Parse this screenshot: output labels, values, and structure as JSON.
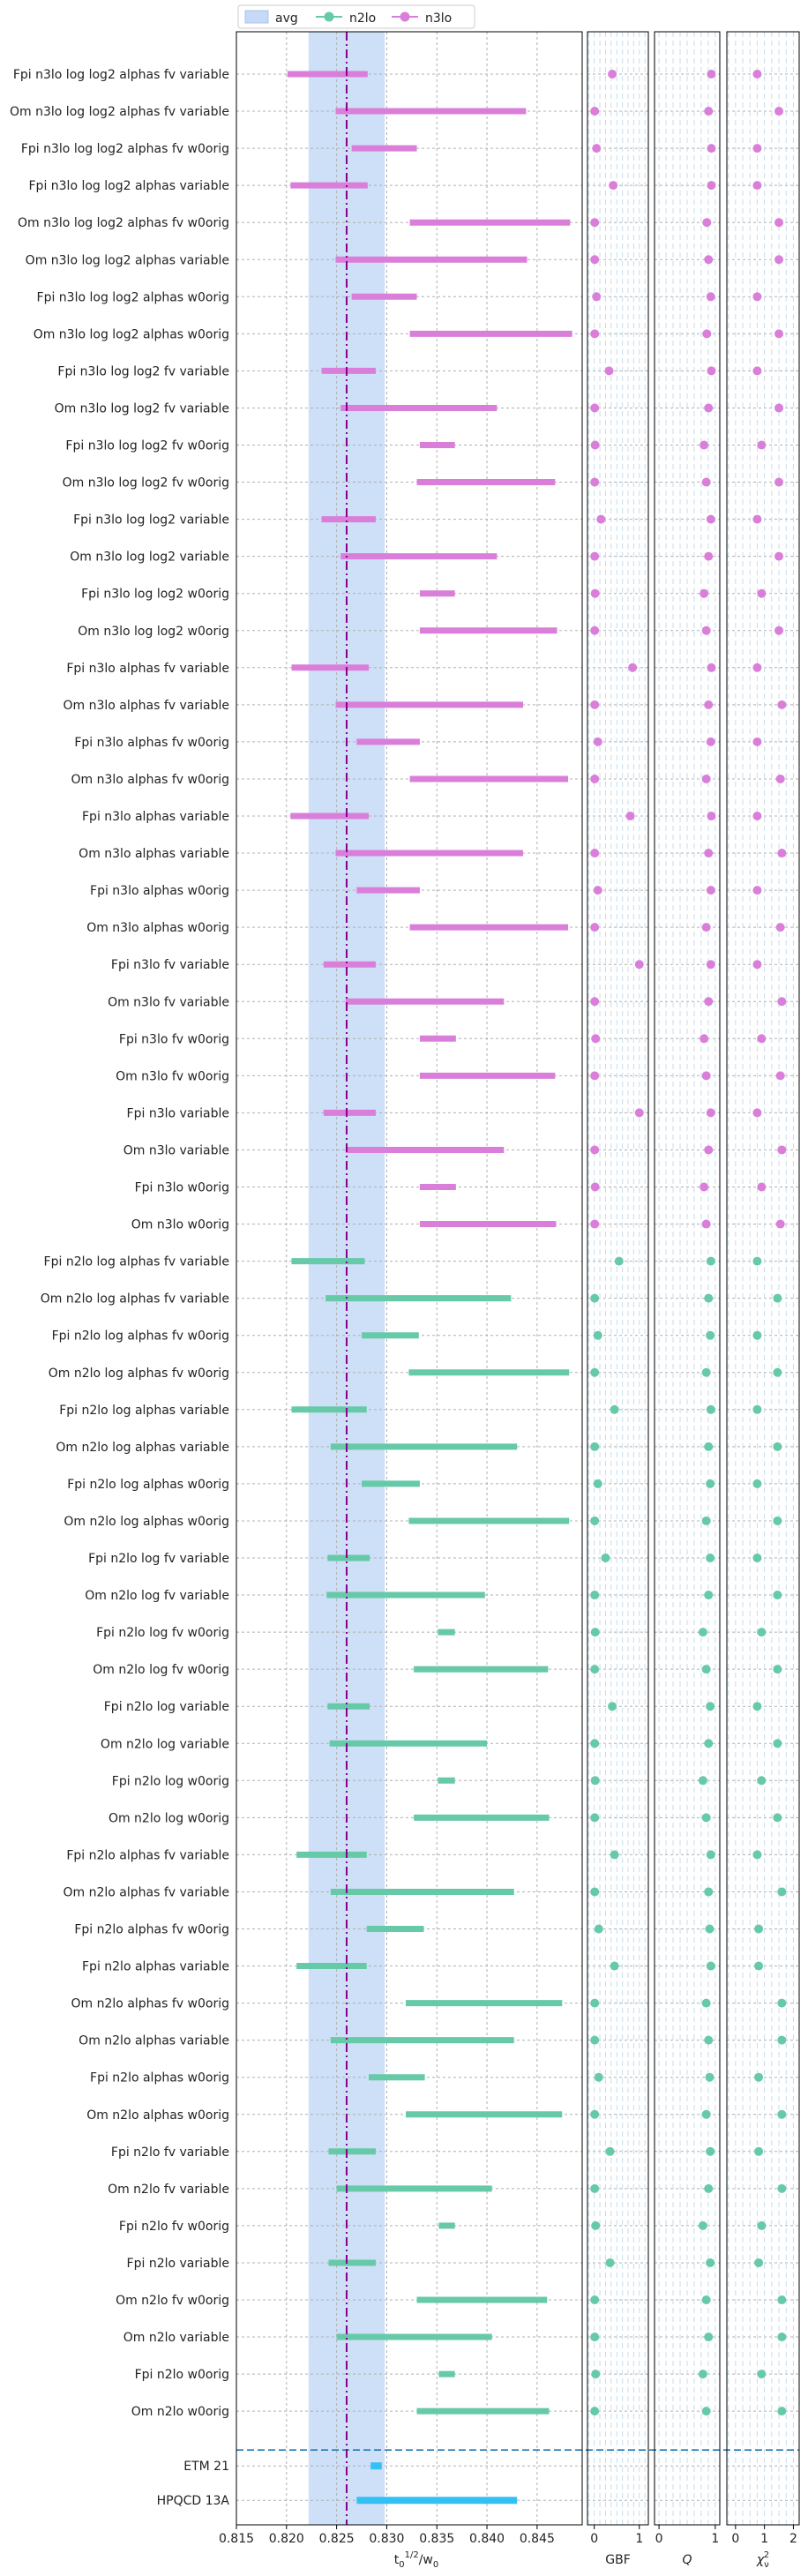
{
  "chart_data": {
    "type": "forest",
    "legend": {
      "placement": "top",
      "entries": [
        {
          "key": "avg",
          "label": "avg",
          "color": "#c6d9f7"
        },
        {
          "key": "n2lo",
          "label": "n2lo",
          "color": "#66c9a8"
        },
        {
          "key": "n3lo",
          "label": "n3lo",
          "color": "#da7fd9"
        }
      ]
    },
    "colors": {
      "n2lo": "#66c9a8",
      "n3lo": "#da7fd9",
      "ref": "#33c1f4",
      "avg_band": "#c6d9f7",
      "avg_line": "#8b008b",
      "separator": "#1f77b4"
    },
    "main_panel": {
      "xlabel": "t_0^{1/2}/w_0",
      "xlim": [
        0.815,
        0.8495
      ],
      "xticks": [
        0.815,
        0.82,
        0.825,
        0.83,
        0.835,
        0.84,
        0.845
      ],
      "xtick_labels": [
        "0.815",
        "0.820",
        "0.825",
        "0.830",
        "0.835",
        "0.840",
        "0.845"
      ],
      "avg_value": 0.826,
      "avg_band": [
        0.8222,
        0.8298
      ]
    },
    "side_panels": [
      {
        "key": "gbf",
        "xlabel": "GBF",
        "xlim": [
          -0.15,
          1.2
        ],
        "xticks": [
          0,
          1
        ],
        "xtick_labels": [
          "0",
          "1"
        ]
      },
      {
        "key": "q",
        "xlabel": "Q",
        "xlim": [
          -0.08,
          1.08
        ],
        "xticks": [
          0,
          1
        ],
        "xtick_labels": [
          "0",
          "1"
        ]
      },
      {
        "key": "chi2",
        "xlabel": "χ²_ν",
        "xlim": [
          -0.3,
          2.2
        ],
        "xticks": [
          0,
          1,
          2
        ],
        "xtick_labels": [
          "0",
          "1",
          "2"
        ]
      }
    ],
    "fits": [
      {
        "label": "Fpi n3lo log log2 alphas fv variable",
        "order": "n3lo",
        "lo": 0.8201,
        "hi": 0.8281,
        "gbf": 0.4,
        "q": 0.93,
        "chi2": 0.75
      },
      {
        "label": "Om n3lo log log2 alphas fv variable",
        "order": "n3lo",
        "lo": 0.8249,
        "hi": 0.8439,
        "gbf": 0.01,
        "q": 0.88,
        "chi2": 1.5
      },
      {
        "label": "Fpi n3lo log log2 alphas fv w0orig",
        "order": "n3lo",
        "lo": 0.8265,
        "hi": 0.833,
        "gbf": 0.05,
        "q": 0.93,
        "chi2": 0.75
      },
      {
        "label": "Fpi n3lo log log2 alphas variable",
        "order": "n3lo",
        "lo": 0.8204,
        "hi": 0.8281,
        "gbf": 0.42,
        "q": 0.93,
        "chi2": 0.75
      },
      {
        "label": "Om n3lo log log2 alphas fv w0orig",
        "order": "n3lo",
        "lo": 0.8323,
        "hi": 0.8483,
        "gbf": 0.01,
        "q": 0.85,
        "chi2": 1.5
      },
      {
        "label": "Om n3lo log log2 alphas variable",
        "order": "n3lo",
        "lo": 0.8249,
        "hi": 0.844,
        "gbf": 0.01,
        "q": 0.88,
        "chi2": 1.5
      },
      {
        "label": "Fpi n3lo log log2 alphas w0orig",
        "order": "n3lo",
        "lo": 0.8265,
        "hi": 0.833,
        "gbf": 0.05,
        "q": 0.92,
        "chi2": 0.75
      },
      {
        "label": "Om n3lo log log2 alphas w0orig",
        "order": "n3lo",
        "lo": 0.8323,
        "hi": 0.8485,
        "gbf": 0.01,
        "q": 0.85,
        "chi2": 1.5
      },
      {
        "label": "Fpi n3lo log log2 fv variable",
        "order": "n3lo",
        "lo": 0.8235,
        "hi": 0.8289,
        "gbf": 0.33,
        "q": 0.93,
        "chi2": 0.75
      },
      {
        "label": "Om n3lo log log2 fv variable",
        "order": "n3lo",
        "lo": 0.8254,
        "hi": 0.841,
        "gbf": 0.01,
        "q": 0.88,
        "chi2": 1.5
      },
      {
        "label": "Fpi n3lo log log2 fv w0orig",
        "order": "n3lo",
        "lo": 0.8333,
        "hi": 0.8368,
        "gbf": 0.02,
        "q": 0.8,
        "chi2": 0.9
      },
      {
        "label": "Om n3lo log log2 fv w0orig",
        "order": "n3lo",
        "lo": 0.833,
        "hi": 0.8468,
        "gbf": 0.01,
        "q": 0.84,
        "chi2": 1.5
      },
      {
        "label": "Fpi n3lo log log2 variable",
        "order": "n3lo",
        "lo": 0.8235,
        "hi": 0.8289,
        "gbf": 0.15,
        "q": 0.92,
        "chi2": 0.75
      },
      {
        "label": "Om n3lo log log2 variable",
        "order": "n3lo",
        "lo": 0.8254,
        "hi": 0.841,
        "gbf": 0.01,
        "q": 0.88,
        "chi2": 1.5
      },
      {
        "label": "Fpi n3lo log log2 w0orig",
        "order": "n3lo",
        "lo": 0.8333,
        "hi": 0.8368,
        "gbf": 0.02,
        "q": 0.8,
        "chi2": 0.9
      },
      {
        "label": "Om n3lo log log2 w0orig",
        "order": "n3lo",
        "lo": 0.8333,
        "hi": 0.847,
        "gbf": 0.01,
        "q": 0.84,
        "chi2": 1.5
      },
      {
        "label": "Fpi n3lo alphas fv variable",
        "order": "n3lo",
        "lo": 0.8205,
        "hi": 0.8282,
        "gbf": 0.85,
        "q": 0.93,
        "chi2": 0.75
      },
      {
        "label": "Om n3lo alphas fv variable",
        "order": "n3lo",
        "lo": 0.8249,
        "hi": 0.8436,
        "gbf": 0.01,
        "q": 0.88,
        "chi2": 1.6
      },
      {
        "label": "Fpi n3lo alphas fv w0orig",
        "order": "n3lo",
        "lo": 0.827,
        "hi": 0.8333,
        "gbf": 0.08,
        "q": 0.92,
        "chi2": 0.75
      },
      {
        "label": "Om n3lo alphas fv w0orig",
        "order": "n3lo",
        "lo": 0.8323,
        "hi": 0.8481,
        "gbf": 0.01,
        "q": 0.84,
        "chi2": 1.55
      },
      {
        "label": "Fpi n3lo alphas variable",
        "order": "n3lo",
        "lo": 0.8204,
        "hi": 0.8282,
        "gbf": 0.8,
        "q": 0.93,
        "chi2": 0.75
      },
      {
        "label": "Om n3lo alphas variable",
        "order": "n3lo",
        "lo": 0.8249,
        "hi": 0.8436,
        "gbf": 0.01,
        "q": 0.88,
        "chi2": 1.6
      },
      {
        "label": "Fpi n3lo alphas w0orig",
        "order": "n3lo",
        "lo": 0.827,
        "hi": 0.8333,
        "gbf": 0.08,
        "q": 0.92,
        "chi2": 0.75
      },
      {
        "label": "Om n3lo alphas w0orig",
        "order": "n3lo",
        "lo": 0.8323,
        "hi": 0.8481,
        "gbf": 0.01,
        "q": 0.84,
        "chi2": 1.55
      },
      {
        "label": "Fpi n3lo fv variable",
        "order": "n3lo",
        "lo": 0.8237,
        "hi": 0.8289,
        "gbf": 1.0,
        "q": 0.92,
        "chi2": 0.75
      },
      {
        "label": "Om n3lo fv variable",
        "order": "n3lo",
        "lo": 0.8259,
        "hi": 0.8417,
        "gbf": 0.01,
        "q": 0.88,
        "chi2": 1.6
      },
      {
        "label": "Fpi n3lo fv w0orig",
        "order": "n3lo",
        "lo": 0.8333,
        "hi": 0.8369,
        "gbf": 0.03,
        "q": 0.8,
        "chi2": 0.9
      },
      {
        "label": "Om n3lo fv w0orig",
        "order": "n3lo",
        "lo": 0.8333,
        "hi": 0.8468,
        "gbf": 0.01,
        "q": 0.84,
        "chi2": 1.55
      },
      {
        "label": "Fpi n3lo variable",
        "order": "n3lo",
        "lo": 0.8237,
        "hi": 0.8289,
        "gbf": 1.0,
        "q": 0.92,
        "chi2": 0.75
      },
      {
        "label": "Om n3lo variable",
        "order": "n3lo",
        "lo": 0.8259,
        "hi": 0.8417,
        "gbf": 0.01,
        "q": 0.88,
        "chi2": 1.6
      },
      {
        "label": "Fpi n3lo w0orig",
        "order": "n3lo",
        "lo": 0.8333,
        "hi": 0.8369,
        "gbf": 0.02,
        "q": 0.8,
        "chi2": 0.9
      },
      {
        "label": "Om n3lo w0orig",
        "order": "n3lo",
        "lo": 0.8333,
        "hi": 0.8469,
        "gbf": 0.01,
        "q": 0.84,
        "chi2": 1.55
      },
      {
        "label": "Fpi n2lo log alphas fv variable",
        "order": "n2lo",
        "lo": 0.8205,
        "hi": 0.8278,
        "gbf": 0.55,
        "q": 0.92,
        "chi2": 0.75
      },
      {
        "label": "Om n2lo log alphas fv variable",
        "order": "n2lo",
        "lo": 0.8239,
        "hi": 0.8424,
        "gbf": 0.01,
        "q": 0.88,
        "chi2": 1.45
      },
      {
        "label": "Fpi n2lo log alphas fv w0orig",
        "order": "n2lo",
        "lo": 0.8275,
        "hi": 0.8332,
        "gbf": 0.08,
        "q": 0.91,
        "chi2": 0.75
      },
      {
        "label": "Om n2lo log alphas fv w0orig",
        "order": "n2lo",
        "lo": 0.8322,
        "hi": 0.8482,
        "gbf": 0.01,
        "q": 0.84,
        "chi2": 1.45
      },
      {
        "label": "Fpi n2lo log alphas variable",
        "order": "n2lo",
        "lo": 0.8205,
        "hi": 0.828,
        "gbf": 0.45,
        "q": 0.92,
        "chi2": 0.75
      },
      {
        "label": "Om n2lo log alphas variable",
        "order": "n2lo",
        "lo": 0.8244,
        "hi": 0.843,
        "gbf": 0.01,
        "q": 0.88,
        "chi2": 1.45
      },
      {
        "label": "Fpi n2lo log alphas w0orig",
        "order": "n2lo",
        "lo": 0.8275,
        "hi": 0.8333,
        "gbf": 0.08,
        "q": 0.91,
        "chi2": 0.75
      },
      {
        "label": "Om n2lo log alphas w0orig",
        "order": "n2lo",
        "lo": 0.8322,
        "hi": 0.8482,
        "gbf": 0.01,
        "q": 0.84,
        "chi2": 1.45
      },
      {
        "label": "Fpi n2lo log fv variable",
        "order": "n2lo",
        "lo": 0.8241,
        "hi": 0.8283,
        "gbf": 0.25,
        "q": 0.91,
        "chi2": 0.75
      },
      {
        "label": "Om n2lo log fv variable",
        "order": "n2lo",
        "lo": 0.824,
        "hi": 0.8398,
        "gbf": 0.01,
        "q": 0.88,
        "chi2": 1.45
      },
      {
        "label": "Fpi n2lo log fv w0orig",
        "order": "n2lo",
        "lo": 0.8351,
        "hi": 0.8368,
        "gbf": 0.02,
        "q": 0.78,
        "chi2": 0.9
      },
      {
        "label": "Om n2lo log fv w0orig",
        "order": "n2lo",
        "lo": 0.8327,
        "hi": 0.8461,
        "gbf": 0.01,
        "q": 0.84,
        "chi2": 1.45
      },
      {
        "label": "Fpi n2lo log variable",
        "order": "n2lo",
        "lo": 0.8241,
        "hi": 0.8283,
        "gbf": 0.4,
        "q": 0.91,
        "chi2": 0.75
      },
      {
        "label": "Om n2lo log variable",
        "order": "n2lo",
        "lo": 0.8243,
        "hi": 0.84,
        "gbf": 0.01,
        "q": 0.88,
        "chi2": 1.45
      },
      {
        "label": "Fpi n2lo log w0orig",
        "order": "n2lo",
        "lo": 0.8351,
        "hi": 0.8368,
        "gbf": 0.02,
        "q": 0.78,
        "chi2": 0.9
      },
      {
        "label": "Om n2lo log w0orig",
        "order": "n2lo",
        "lo": 0.8327,
        "hi": 0.8462,
        "gbf": 0.01,
        "q": 0.84,
        "chi2": 1.45
      },
      {
        "label": "Fpi n2lo alphas fv variable",
        "order": "n2lo",
        "lo": 0.821,
        "hi": 0.828,
        "gbf": 0.45,
        "q": 0.92,
        "chi2": 0.75
      },
      {
        "label": "Om n2lo alphas fv variable",
        "order": "n2lo",
        "lo": 0.8244,
        "hi": 0.8427,
        "gbf": 0.01,
        "q": 0.88,
        "chi2": 1.6
      },
      {
        "label": "Fpi n2lo alphas fv w0orig",
        "order": "n2lo",
        "lo": 0.828,
        "hi": 0.8337,
        "gbf": 0.1,
        "q": 0.9,
        "chi2": 0.8
      },
      {
        "label": "Fpi n2lo alphas variable",
        "order": "n2lo",
        "lo": 0.821,
        "hi": 0.828,
        "gbf": 0.45,
        "q": 0.92,
        "chi2": 0.8
      },
      {
        "label": "Om n2lo alphas fv w0orig",
        "order": "n2lo",
        "lo": 0.8319,
        "hi": 0.8475,
        "gbf": 0.01,
        "q": 0.84,
        "chi2": 1.6
      },
      {
        "label": "Om n2lo alphas variable",
        "order": "n2lo",
        "lo": 0.8244,
        "hi": 0.8427,
        "gbf": 0.01,
        "q": 0.88,
        "chi2": 1.6
      },
      {
        "label": "Fpi n2lo alphas w0orig",
        "order": "n2lo",
        "lo": 0.8282,
        "hi": 0.8338,
        "gbf": 0.1,
        "q": 0.9,
        "chi2": 0.8
      },
      {
        "label": "Om n2lo alphas w0orig",
        "order": "n2lo",
        "lo": 0.8319,
        "hi": 0.8475,
        "gbf": 0.01,
        "q": 0.84,
        "chi2": 1.6
      },
      {
        "label": "Fpi n2lo fv variable",
        "order": "n2lo",
        "lo": 0.8242,
        "hi": 0.8289,
        "gbf": 0.35,
        "q": 0.91,
        "chi2": 0.8
      },
      {
        "label": "Om n2lo fv variable",
        "order": "n2lo",
        "lo": 0.825,
        "hi": 0.8405,
        "gbf": 0.01,
        "q": 0.88,
        "chi2": 1.6
      },
      {
        "label": "Fpi n2lo fv w0orig",
        "order": "n2lo",
        "lo": 0.8352,
        "hi": 0.8368,
        "gbf": 0.03,
        "q": 0.78,
        "chi2": 0.9
      },
      {
        "label": "Fpi n2lo variable",
        "order": "n2lo",
        "lo": 0.8242,
        "hi": 0.8289,
        "gbf": 0.35,
        "q": 0.91,
        "chi2": 0.8
      },
      {
        "label": "Om n2lo fv w0orig",
        "order": "n2lo",
        "lo": 0.833,
        "hi": 0.846,
        "gbf": 0.01,
        "q": 0.84,
        "chi2": 1.6
      },
      {
        "label": "Om n2lo variable",
        "order": "n2lo",
        "lo": 0.825,
        "hi": 0.8405,
        "gbf": 0.01,
        "q": 0.88,
        "chi2": 1.6
      },
      {
        "label": "Fpi n2lo w0orig",
        "order": "n2lo",
        "lo": 0.8352,
        "hi": 0.8368,
        "gbf": 0.03,
        "q": 0.78,
        "chi2": 0.9
      },
      {
        "label": "Om n2lo w0orig",
        "order": "n2lo",
        "lo": 0.833,
        "hi": 0.8462,
        "gbf": 0.01,
        "q": 0.84,
        "chi2": 1.6
      }
    ],
    "references": [
      {
        "label": "ETM 21",
        "lo": 0.8284,
        "hi": 0.8295
      },
      {
        "label": "HPQCD 13A",
        "lo": 0.827,
        "hi": 0.843
      }
    ]
  }
}
